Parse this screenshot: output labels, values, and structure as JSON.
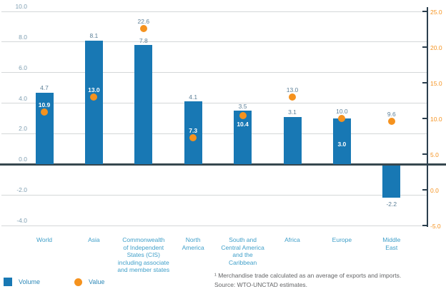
{
  "chart_data": {
    "type": "bar",
    "title": "",
    "categories": [
      "World",
      "Asia",
      "Commonwealth\nof Independent\nStates (CIS)\nincluding associate\nand member states",
      "North\nAmerica",
      "South and\nCentral America\nand the\nCaribbean",
      "Africa",
      "Europe",
      "Middle\nEast"
    ],
    "category_slugs": [
      "world",
      "asia",
      "cis",
      "north-america",
      "south-central-america-caribbean",
      "africa",
      "europe",
      "middle-east"
    ],
    "series": [
      {
        "name": "Volume",
        "type": "bar",
        "axis": "left",
        "values": [
          4.7,
          8.1,
          7.8,
          4.1,
          3.5,
          3.1,
          3.0,
          -2.2
        ]
      },
      {
        "name": "Value",
        "type": "point",
        "axis": "right",
        "values": [
          10.9,
          13.0,
          22.6,
          7.3,
          10.4,
          13.0,
          10.0,
          9.6
        ]
      }
    ],
    "volume_label_style": [
      "above",
      "above",
      "above",
      "above",
      "above",
      "above",
      "inside",
      "below"
    ],
    "value_label_style": [
      "on-bar-above",
      "on-bar-above",
      "free-above",
      "on-bar-above",
      "on-bar-below",
      "free-above",
      "free-above",
      "free-above"
    ],
    "left_axis": {
      "tick_labels": [
        "10.0",
        "8.0",
        "6.0",
        "4.0",
        "2.0",
        "0.0",
        "-2.0",
        "-4.0"
      ],
      "range": [
        -4,
        10
      ]
    },
    "right_axis": {
      "tick_labels": [
        "25.0",
        "20.0",
        "15.0",
        "10.0",
        "5.0",
        "0.0",
        "-5.0"
      ],
      "range": [
        -5,
        25
      ]
    },
    "grid": true,
    "legend_position": "bottom-left"
  },
  "legend": {
    "volume_label": "Volume",
    "value_label": "Value"
  },
  "footnote": {
    "line1": "¹ Merchandise trade calculated as an average of exports and imports.",
    "line2": "Source: WTO-UNCTAD estimates."
  },
  "colors": {
    "bar": "#1878b4",
    "dot": "#f5921e",
    "category_label": "#3f9fc9",
    "axis_left_label": "#7f9fb2",
    "axis_right_label": "#f5921e",
    "value_label_gray": "#5d8098",
    "value_label_white": "#ffffff",
    "gridline": "#d4d7d8",
    "zero_line": "#36474f",
    "right_spine": "#2b3f4e",
    "legend_label": "#2e89b8",
    "footnote": "#636466"
  }
}
